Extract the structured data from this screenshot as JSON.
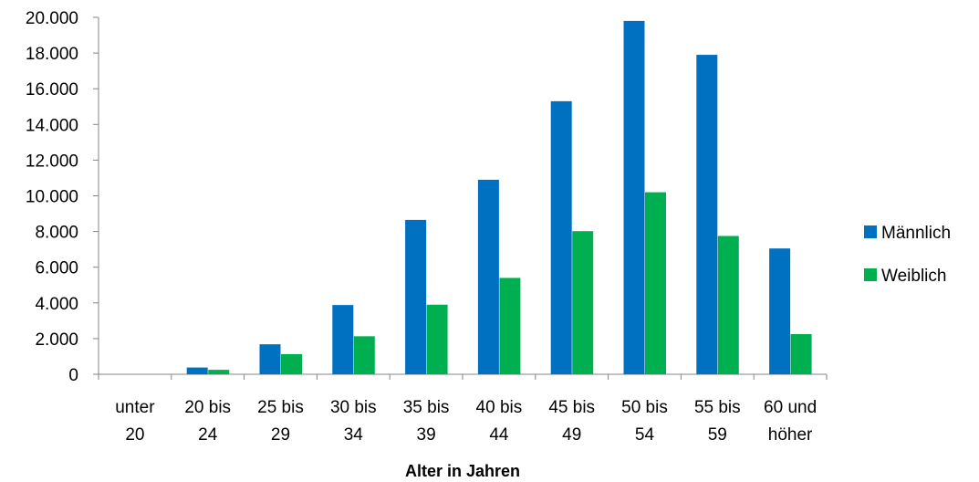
{
  "chart_data": {
    "type": "bar",
    "categories": [
      [
        "unter",
        "20"
      ],
      [
        "20 bis",
        "24"
      ],
      [
        "25 bis",
        "29"
      ],
      [
        "30 bis",
        "34"
      ],
      [
        "35 bis",
        "39"
      ],
      [
        "40 bis",
        "44"
      ],
      [
        "45 bis",
        "49"
      ],
      [
        "50 bis",
        "54"
      ],
      [
        "55 bis",
        "59"
      ],
      [
        "60 und",
        "höher"
      ]
    ],
    "series": [
      {
        "name": "Männlich",
        "color": "#0070C0",
        "values": [
          0,
          380,
          1680,
          3880,
          8650,
          10900,
          15300,
          19800,
          17900,
          7050
        ]
      },
      {
        "name": "Weiblich",
        "color": "#00B050",
        "values": [
          0,
          250,
          1130,
          2130,
          3900,
          5400,
          8020,
          10200,
          7750,
          2250
        ]
      }
    ],
    "title": "",
    "xlabel": "Alter in Jahren",
    "ylabel": "",
    "ylim": [
      0,
      20000
    ],
    "yticks": [
      "0",
      "2.000",
      "4.000",
      "6.000",
      "8.000",
      "10.000",
      "12.000",
      "14.000",
      "16.000",
      "18.000",
      "20.000"
    ],
    "grid": false,
    "legend_position": "right"
  }
}
